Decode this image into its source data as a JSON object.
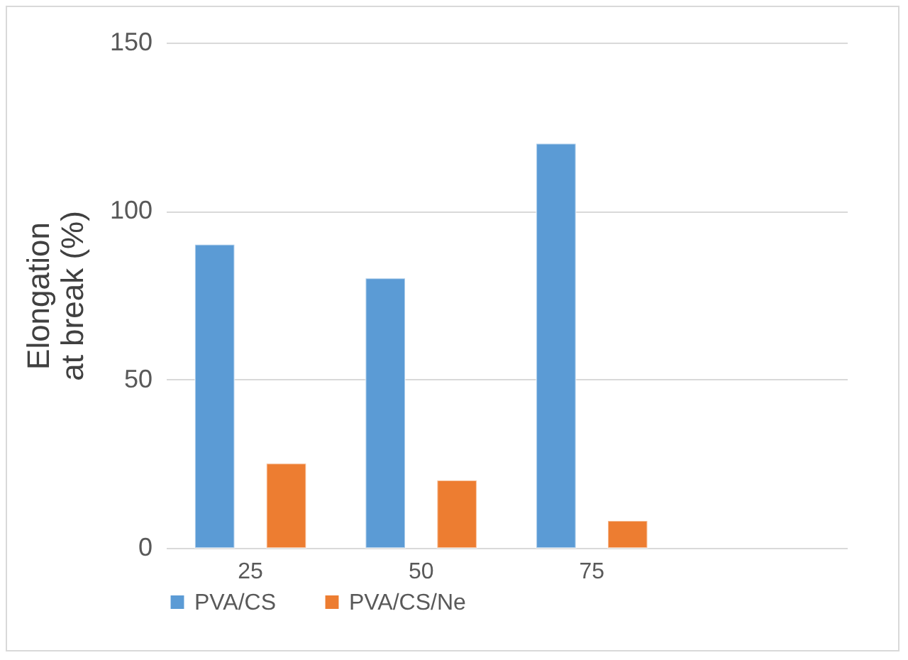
{
  "chart_data": {
    "type": "bar",
    "ylabel": "Elongation at break (%)",
    "categories": [
      "25",
      "50",
      "75",
      null
    ],
    "series": [
      {
        "name": "PVA/CS",
        "color": "#5b9bd5",
        "values": [
          90,
          80,
          120,
          null
        ]
      },
      {
        "name": "PVA/CS/Ne",
        "color": "#ed7d31",
        "values": [
          25,
          20,
          8,
          null
        ]
      }
    ],
    "ylim": [
      0,
      150
    ],
    "yticks": [
      0,
      50,
      100,
      150
    ],
    "grid": "y",
    "legend": "bottom"
  }
}
